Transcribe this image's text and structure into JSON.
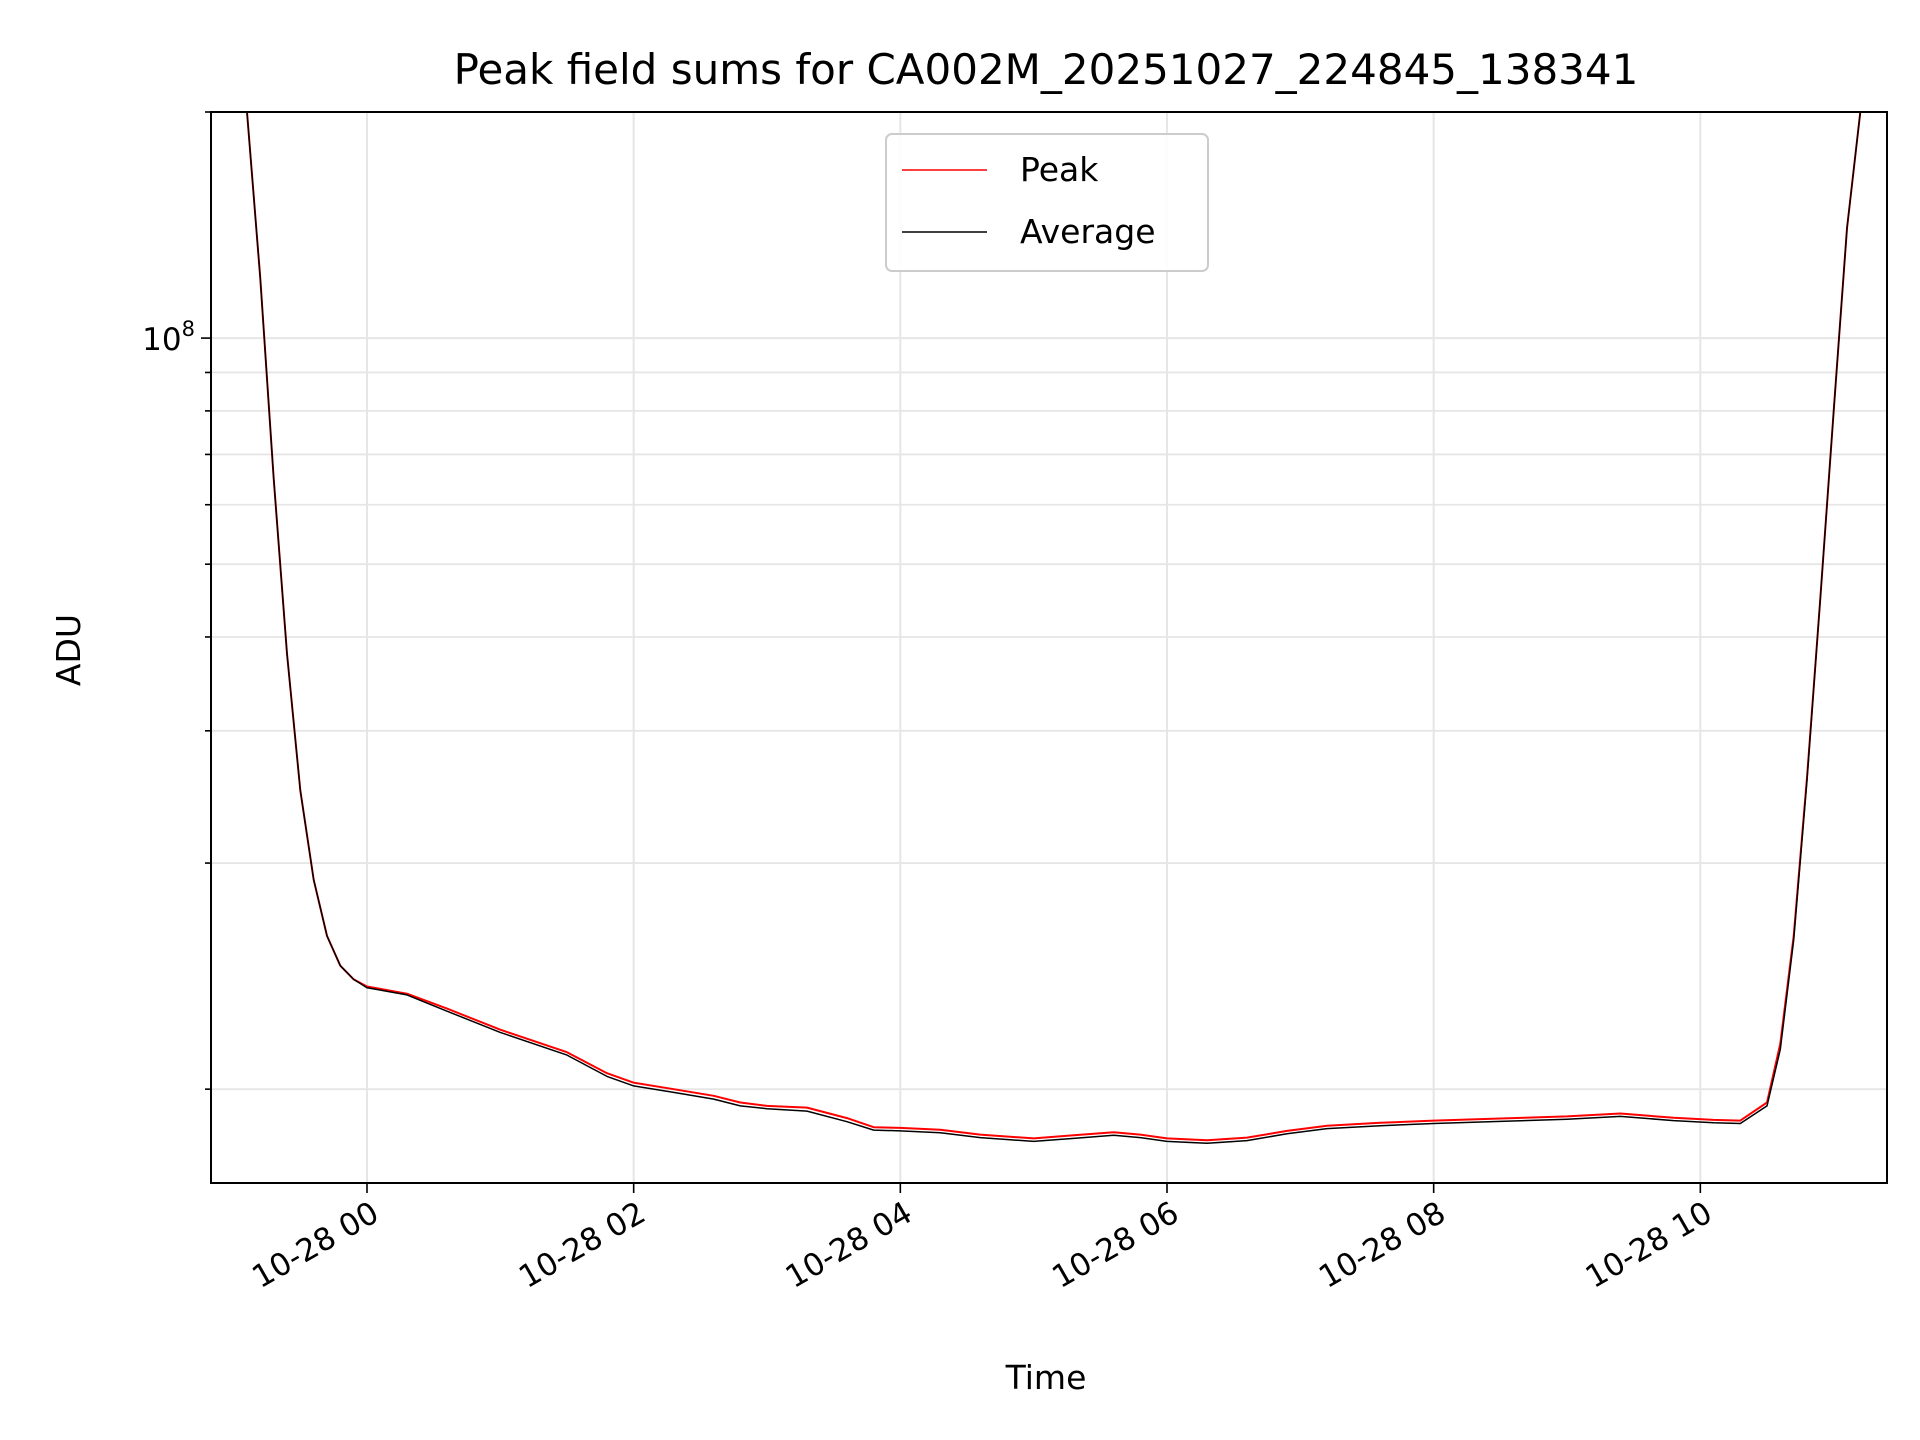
{
  "chart_data": {
    "type": "line",
    "title": "Peak field sums for CA002M_20251027_224845_138341",
    "xlabel": "Time",
    "ylabel": "ADU",
    "yscale": "log",
    "ylim": [
      7500000,
      200000000
    ],
    "xlim_hours": [
      -1.17,
      11.4
    ],
    "grid": true,
    "x_ticks": [
      {
        "hours": 0,
        "label": "10-28 00"
      },
      {
        "hours": 2,
        "label": "10-28 02"
      },
      {
        "hours": 4,
        "label": "10-28 04"
      },
      {
        "hours": 6,
        "label": "10-28 06"
      },
      {
        "hours": 8,
        "label": "10-28 08"
      },
      {
        "hours": 10,
        "label": "10-28 10"
      }
    ],
    "y_major_tick": {
      "value": 100000000,
      "label_base": "10",
      "label_exp": "8"
    },
    "legend": {
      "position": "upper center",
      "entries": [
        {
          "label": "Peak",
          "color": "#ff0000"
        },
        {
          "label": "Average",
          "color": "#000000"
        }
      ]
    },
    "x_hours": [
      -1.17,
      -0.9,
      -0.8,
      -0.7,
      -0.6,
      -0.5,
      -0.4,
      -0.3,
      -0.2,
      -0.1,
      0.0,
      0.3,
      0.6,
      1.0,
      1.5,
      1.8,
      2.0,
      2.3,
      2.6,
      2.8,
      3.0,
      3.3,
      3.6,
      3.8,
      4.0,
      4.3,
      4.6,
      5.0,
      5.3,
      5.6,
      5.8,
      6.0,
      6.3,
      6.6,
      6.9,
      7.2,
      7.6,
      8.0,
      8.5,
      9.0,
      9.4,
      9.8,
      10.1,
      10.3,
      10.5,
      10.6,
      10.7,
      10.8,
      10.9,
      11.0,
      11.1,
      11.2,
      11.3,
      11.4
    ],
    "series": [
      {
        "name": "Peak",
        "color": "#ff0000",
        "values": [
          200000000,
          200000000,
          120000000,
          65000000,
          38000000,
          25000000,
          19000000,
          16000000,
          14600000,
          14000000,
          13700000,
          13400000,
          12800000,
          12000000,
          11200000,
          10500000,
          10200000,
          10000000,
          9800000,
          9600000,
          9500000,
          9450000,
          9150000,
          8900000,
          8880000,
          8830000,
          8700000,
          8600000,
          8680000,
          8760000,
          8700000,
          8600000,
          8550000,
          8620000,
          8800000,
          8940000,
          9020000,
          9080000,
          9140000,
          9200000,
          9280000,
          9160000,
          9100000,
          9080000,
          9600000,
          11500000,
          16000000,
          26000000,
          45000000,
          80000000,
          140000000,
          200000000,
          200000000,
          200000000
        ]
      },
      {
        "name": "Average",
        "color": "#000000",
        "values": [
          200000000,
          200000000,
          120000000,
          65000000,
          38000000,
          25000000,
          19000000,
          16000000,
          14600000,
          14000000,
          13650000,
          13350000,
          12700000,
          11900000,
          11100000,
          10400000,
          10100000,
          9900000,
          9700000,
          9500000,
          9420000,
          9350000,
          9050000,
          8820000,
          8800000,
          8750000,
          8620000,
          8520000,
          8600000,
          8680000,
          8620000,
          8520000,
          8470000,
          8540000,
          8720000,
          8860000,
          8940000,
          9000000,
          9060000,
          9120000,
          9200000,
          9080000,
          9020000,
          9000000,
          9500000,
          11300000,
          15800000,
          25800000,
          45000000,
          80000000,
          140000000,
          200000000,
          200000000,
          200000000
        ]
      }
    ]
  }
}
